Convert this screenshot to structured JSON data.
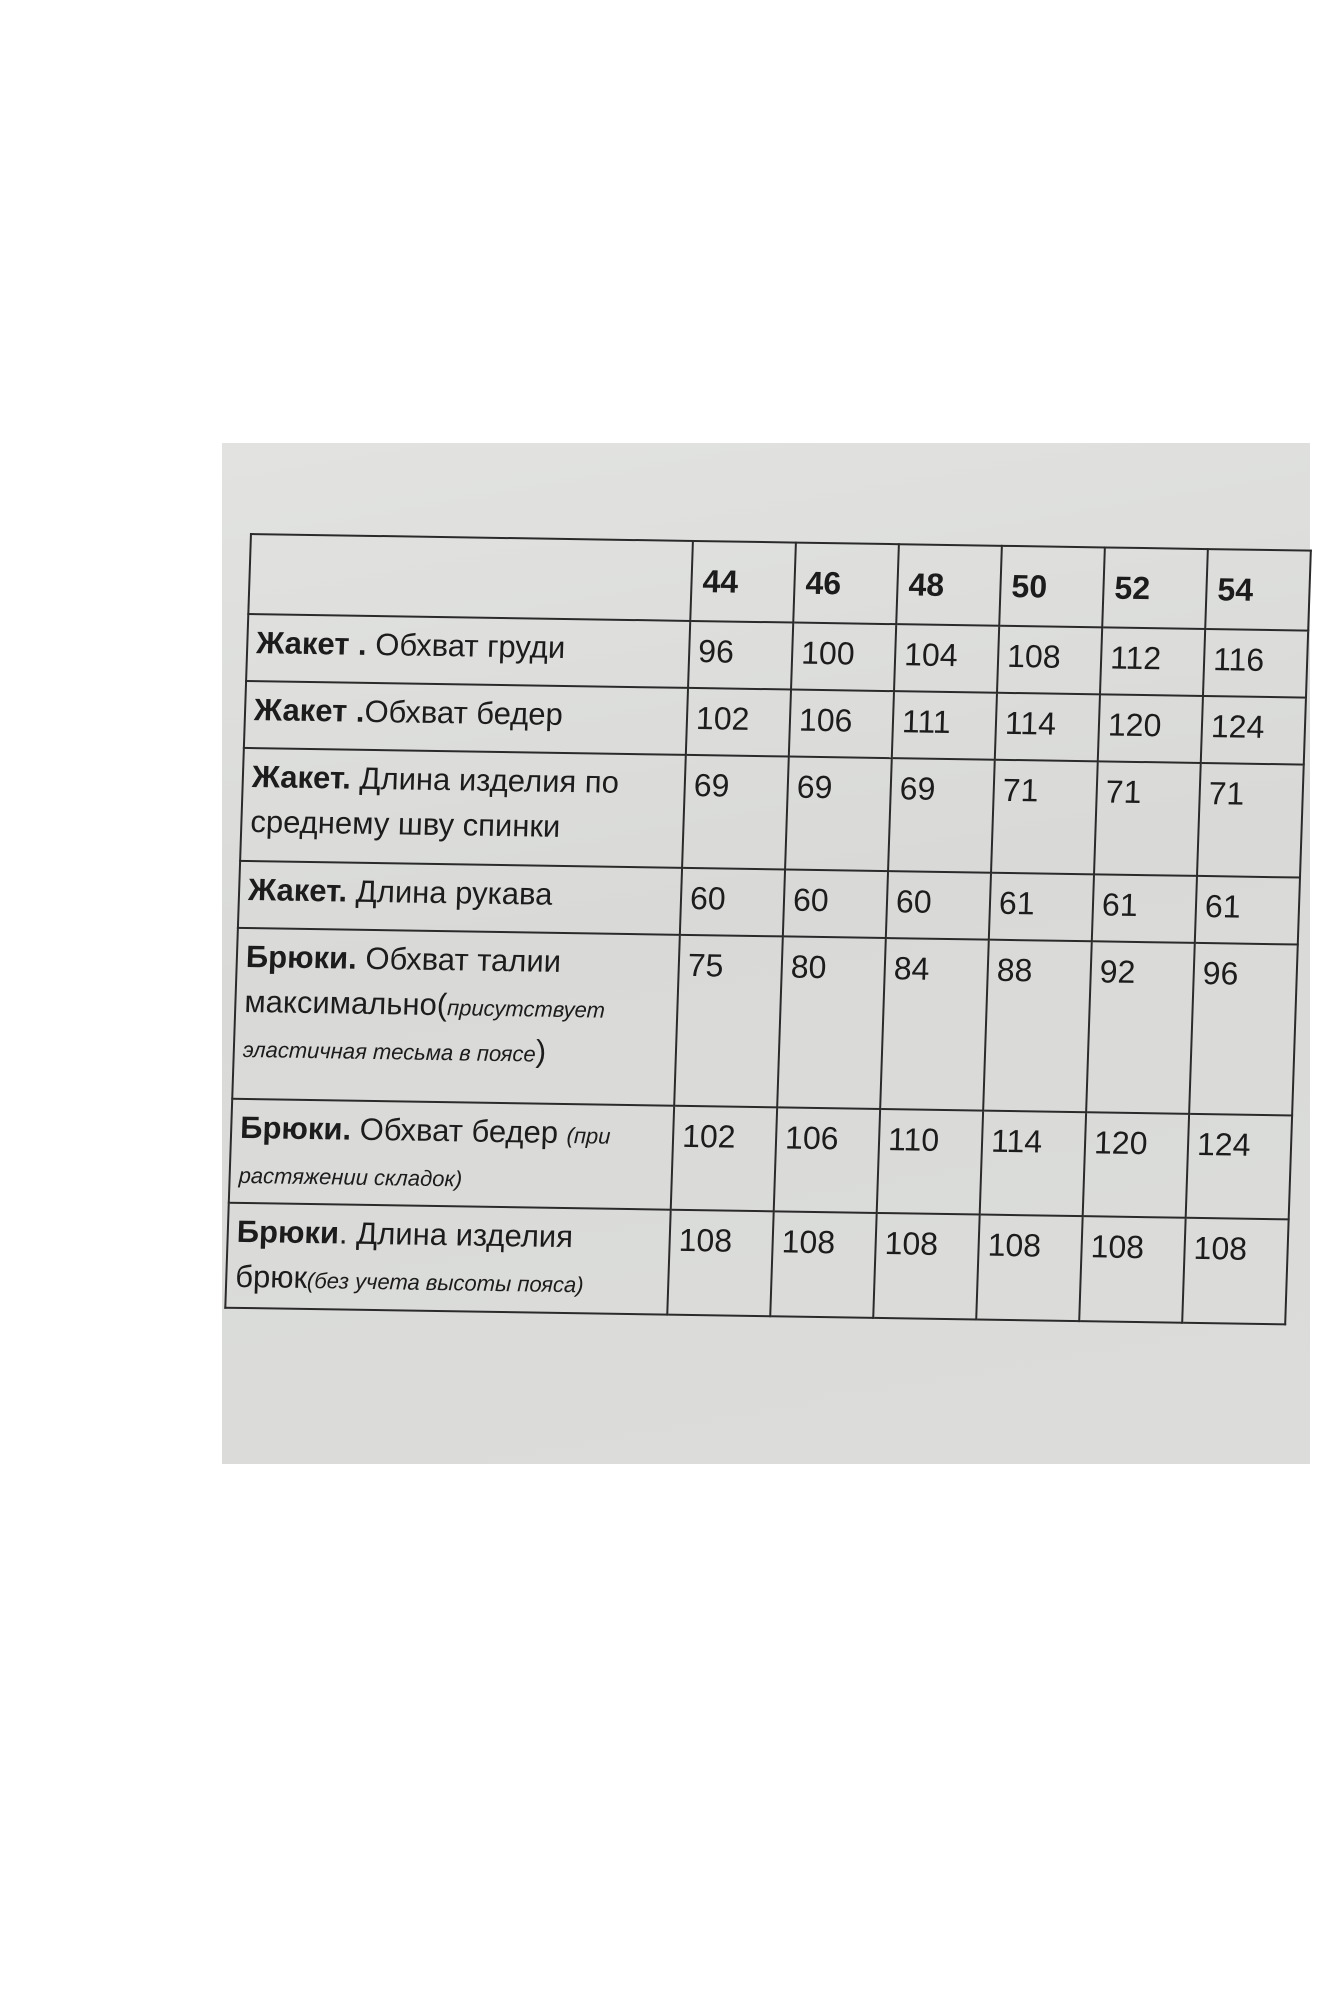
{
  "sizes": [
    "44",
    "46",
    "48",
    "50",
    "52",
    "54"
  ],
  "rows": [
    {
      "bold": "Жакет .",
      "text": " Обхват груди",
      "note": "",
      "values": [
        "96",
        "100",
        "104",
        "108",
        "112",
        "116"
      ]
    },
    {
      "bold": "Жакет .",
      "text": "Обхват бедер",
      "note": "",
      "values": [
        "102",
        "106",
        "111",
        "114",
        "120",
        "124"
      ]
    },
    {
      "bold": "Жакет.",
      "text": " Длина изделия по среднему шву спинки",
      "note": "",
      "values": [
        "69",
        "69",
        "69",
        "71",
        "71",
        "71"
      ]
    },
    {
      "bold": "Жакет.",
      "text": " Длина рукава",
      "note": "",
      "values": [
        "60",
        "60",
        "60",
        "61",
        "61",
        "61"
      ]
    },
    {
      "bold": "Брюки.",
      "text": " Обхват талии максимально(",
      "note": "присутствует эластичная тесьма в поясе",
      "close": ")",
      "values": [
        "75",
        "80",
        "84",
        "88",
        "92",
        "96"
      ]
    },
    {
      "bold": "Брюки.",
      "text": " Обхват бедер ",
      "note": "(при растяжении складок)",
      "values": [
        "102",
        "106",
        "110",
        "114",
        "120",
        "124"
      ]
    },
    {
      "bold": "Брюки",
      "text": ". Длина изделия брюк",
      "note": "(без учета высоты пояса)",
      "values": [
        "108",
        "108",
        "108",
        "108",
        "108",
        "108"
      ]
    }
  ]
}
